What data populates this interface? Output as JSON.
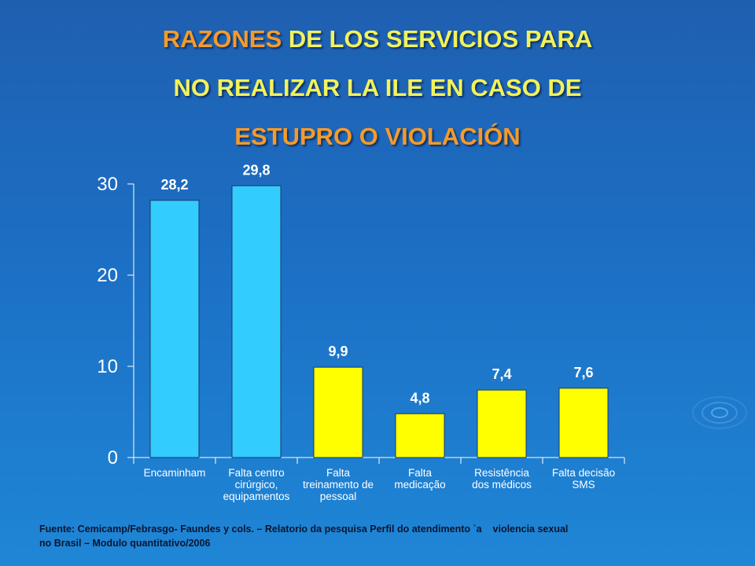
{
  "title": {
    "line1_highlight": "RAZONES",
    "line1_rest": " DE LOS SERVICIOS PARA",
    "line2": "NO REALIZAR LA ILE EN CASO DE",
    "line3": "ESTUPRO O VIOLACIÓN"
  },
  "chart_data": {
    "type": "bar",
    "categories": [
      [
        "Encaminham"
      ],
      [
        "Falta centro",
        "cirúrgico,",
        "equipamentos"
      ],
      [
        "Falta",
        "treinamento de",
        "pessoal"
      ],
      [
        "Falta",
        "medicação"
      ],
      [
        "Resistência",
        "dos médicos"
      ],
      [
        "Falta decisão",
        "SMS"
      ]
    ],
    "values": [
      28.2,
      29.8,
      9.9,
      4.8,
      7.4,
      7.6
    ],
    "value_labels": [
      "28,2",
      "29,8",
      "9,9",
      "4,8",
      "7,4",
      "7,6"
    ],
    "bar_colors": [
      "#33ccff",
      "#33ccff",
      "#ffff00",
      "#ffff00",
      "#ffff00",
      "#ffff00"
    ],
    "ylim": [
      0,
      30
    ],
    "yticks": [
      0,
      10,
      20,
      30
    ],
    "grid": false,
    "xlabel": "",
    "ylabel": ""
  },
  "footnote": {
    "line1": "Fuente: Cemicamp/Febrasgo- Faundes y cols. – Relatorio da pesquisa Perfil do atendimento `a    violencia sexual",
    "line2": "no Brasil – Modulo quantitativo/2006"
  },
  "colors": {
    "title_yellow": "#f2f25a",
    "title_orange": "#f59a2a",
    "axis": "#ffffff"
  }
}
